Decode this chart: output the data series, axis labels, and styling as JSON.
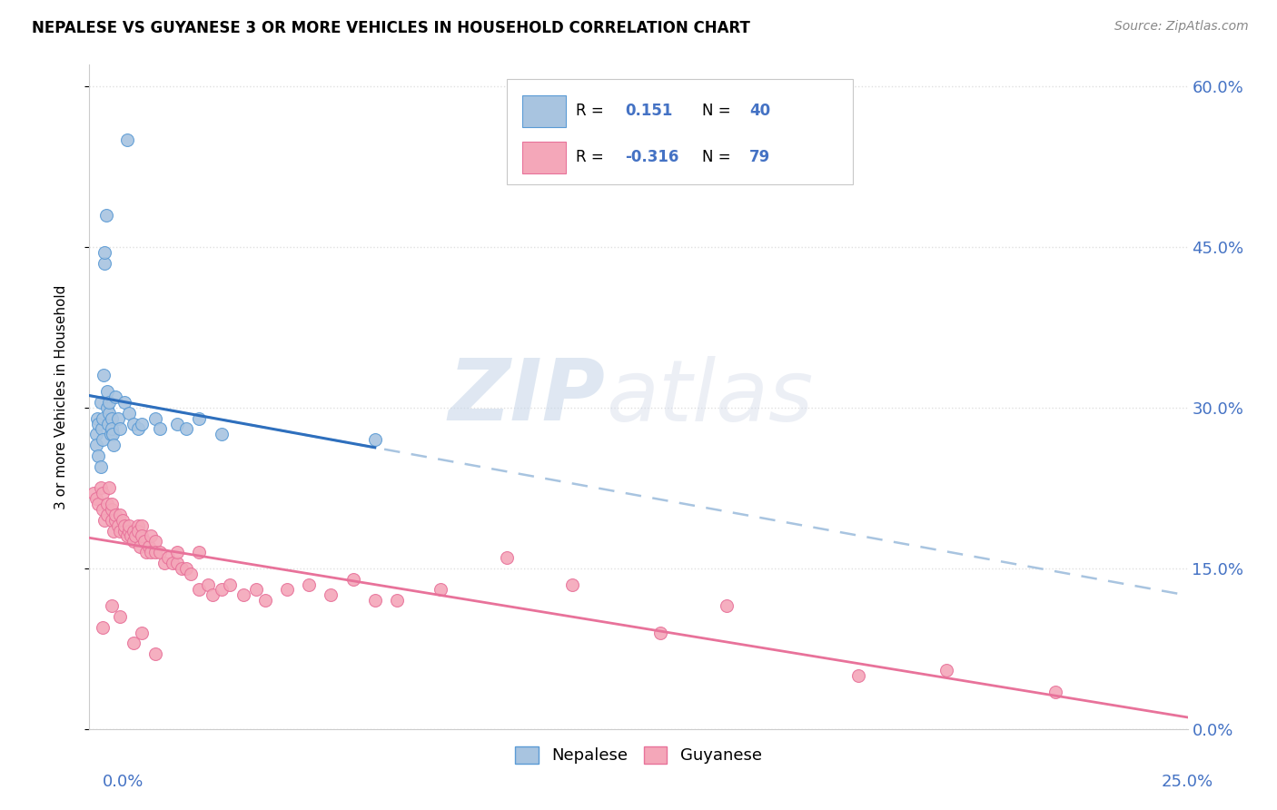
{
  "title": "NEPALESE VS GUYANESE 3 OR MORE VEHICLES IN HOUSEHOLD CORRELATION CHART",
  "source": "Source: ZipAtlas.com",
  "ylabel": "3 or more Vehicles in Household",
  "xlim": [
    0.0,
    25.0
  ],
  "ylim": [
    0.0,
    62.0
  ],
  "yticks": [
    0.0,
    15.0,
    30.0,
    45.0,
    60.0
  ],
  "ytick_labels": [
    "0.0%",
    "15.0%",
    "30.0%",
    "45.0%",
    "60.0%"
  ],
  "xtick_left": "0.0%",
  "xtick_right": "25.0%",
  "watermark_zip": "ZIP",
  "watermark_atlas": "atlas",
  "legend_r_nepalese": "0.151",
  "legend_n_nepalese": "40",
  "legend_r_guyanese": "-0.316",
  "legend_n_guyanese": "79",
  "nepalese_color": "#a8c4e0",
  "nepalese_edge_color": "#5b9bd5",
  "guyanese_color": "#f4a7b9",
  "guyanese_edge_color": "#e8729a",
  "nepalese_line_color": "#2e6fbd",
  "guyanese_line_color": "#e8729a",
  "dashed_line_color": "#a8c4e0",
  "blue_text_color": "#4472c4",
  "grid_color": "#e0e0e0",
  "background_color": "#ffffff",
  "nepalese_x": [
    0.15,
    0.15,
    0.18,
    0.2,
    0.2,
    0.25,
    0.25,
    0.28,
    0.3,
    0.3,
    0.32,
    0.35,
    0.35,
    0.38,
    0.4,
    0.4,
    0.42,
    0.45,
    0.45,
    0.48,
    0.5,
    0.5,
    0.52,
    0.55,
    0.6,
    0.65,
    0.7,
    0.8,
    0.85,
    0.9,
    1.0,
    1.1,
    1.2,
    1.5,
    1.6,
    2.0,
    2.2,
    2.5,
    3.0,
    6.5
  ],
  "nepalese_y": [
    27.5,
    26.5,
    29.0,
    28.5,
    25.5,
    30.5,
    24.5,
    28.0,
    29.0,
    27.0,
    33.0,
    43.5,
    44.5,
    48.0,
    30.0,
    31.5,
    28.5,
    29.5,
    30.5,
    27.5,
    29.0,
    28.0,
    27.5,
    26.5,
    31.0,
    29.0,
    28.0,
    30.5,
    55.0,
    29.5,
    28.5,
    28.0,
    28.5,
    29.0,
    28.0,
    28.5,
    28.0,
    29.0,
    27.5,
    27.0
  ],
  "guyanese_x": [
    0.1,
    0.15,
    0.2,
    0.25,
    0.3,
    0.3,
    0.35,
    0.4,
    0.4,
    0.45,
    0.5,
    0.5,
    0.5,
    0.55,
    0.6,
    0.6,
    0.65,
    0.7,
    0.7,
    0.75,
    0.8,
    0.8,
    0.85,
    0.9,
    0.9,
    0.95,
    1.0,
    1.0,
    1.05,
    1.1,
    1.1,
    1.15,
    1.2,
    1.2,
    1.25,
    1.3,
    1.35,
    1.4,
    1.4,
    1.5,
    1.5,
    1.6,
    1.7,
    1.8,
    1.9,
    2.0,
    2.0,
    2.1,
    2.2,
    2.3,
    2.5,
    2.5,
    2.7,
    2.8,
    3.0,
    3.2,
    3.5,
    3.8,
    4.0,
    4.5,
    5.0,
    5.5,
    6.0,
    6.5,
    7.0,
    8.0,
    9.5,
    11.0,
    13.0,
    14.5,
    17.5,
    19.5,
    22.0,
    0.3,
    0.5,
    0.7,
    1.0,
    1.2,
    1.5
  ],
  "guyanese_y": [
    22.0,
    21.5,
    21.0,
    22.5,
    20.5,
    22.0,
    19.5,
    20.0,
    21.0,
    22.5,
    20.5,
    21.0,
    19.5,
    18.5,
    19.5,
    20.0,
    19.0,
    20.0,
    18.5,
    19.5,
    18.5,
    19.0,
    18.0,
    18.5,
    19.0,
    18.0,
    18.5,
    17.5,
    18.0,
    19.0,
    18.5,
    17.0,
    19.0,
    18.0,
    17.5,
    16.5,
    17.0,
    16.5,
    18.0,
    17.5,
    16.5,
    16.5,
    15.5,
    16.0,
    15.5,
    15.5,
    16.5,
    15.0,
    15.0,
    14.5,
    16.5,
    13.0,
    13.5,
    12.5,
    13.0,
    13.5,
    12.5,
    13.0,
    12.0,
    13.0,
    13.5,
    12.5,
    14.0,
    12.0,
    12.0,
    13.0,
    16.0,
    13.5,
    9.0,
    11.5,
    5.0,
    5.5,
    3.5,
    9.5,
    11.5,
    10.5,
    8.0,
    9.0,
    7.0
  ]
}
